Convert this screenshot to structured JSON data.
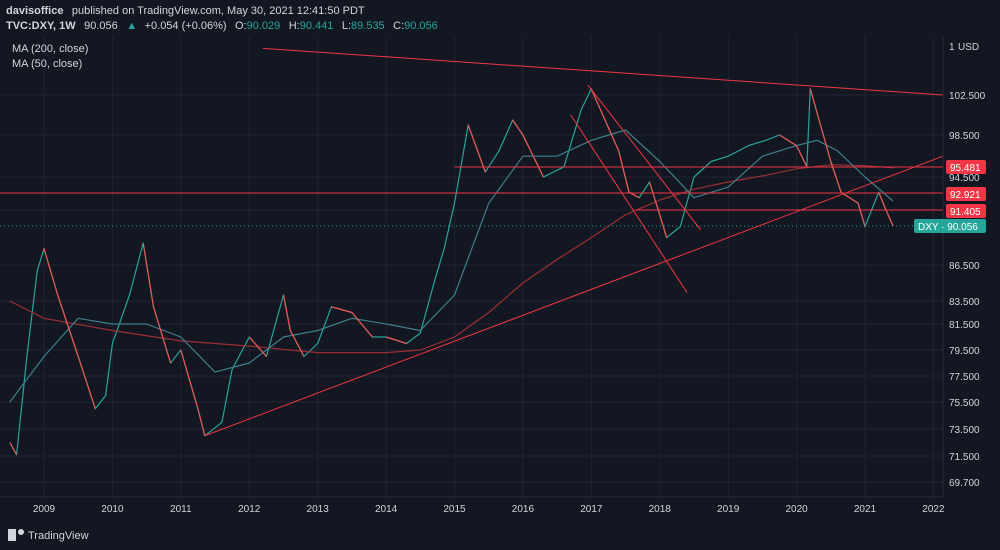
{
  "header": {
    "author": "davisoffice",
    "published": "published on TradingView.com, May 30, 2021 12:41:50 PDT",
    "symbol": "TVC:DXY, 1W",
    "last": "90.056",
    "change": "+0.054 (+0.06%)",
    "open_label": "O:",
    "open": "90.029",
    "high_label": "H:",
    "high": "90.441",
    "low_label": "L:",
    "low": "89.535",
    "close_label": "C:",
    "close": "90.056"
  },
  "legend": {
    "ma200": "MA (200, close)",
    "ma50": "MA (50, close)"
  },
  "axis": {
    "currency_label": "USD"
  },
  "price_tags": {
    "current": "DXY · 90.056",
    "level_95": "95.481",
    "level_92": "92.921",
    "level_91": "91.405"
  },
  "brand": "TradingView",
  "colors": {
    "background": "#131722",
    "grid": "#1f2433",
    "up": "#26a69a",
    "down": "#ef5350",
    "trendline": "#f23645",
    "ma200": "#9c2f33",
    "ma50": "#3f7f8c",
    "tag_red": "#f23645",
    "tag_current": "#26a69a"
  },
  "chart_data": {
    "type": "line",
    "title": "TVC:DXY, 1W",
    "series": [
      {
        "name": "DXY",
        "x": [
          2008.5,
          2008.6,
          2008.75,
          2008.9,
          2009.0,
          2009.2,
          2009.5,
          2009.75,
          2009.9,
          2010.0,
          2010.25,
          2010.45,
          2010.6,
          2010.85,
          2011.0,
          2011.25,
          2011.35,
          2011.6,
          2011.75,
          2012.0,
          2012.25,
          2012.5,
          2012.6,
          2012.8,
          2013.0,
          2013.2,
          2013.5,
          2013.8,
          2014.0,
          2014.3,
          2014.5,
          2014.7,
          2014.85,
          2015.0,
          2015.2,
          2015.45,
          2015.65,
          2015.85,
          2016.0,
          2016.3,
          2016.6,
          2016.85,
          2017.0,
          2017.2,
          2017.4,
          2017.55,
          2017.7,
          2017.85,
          2018.0,
          2018.1,
          2018.3,
          2018.5,
          2018.75,
          2019.0,
          2019.3,
          2019.55,
          2019.75,
          2020.0,
          2020.15,
          2020.2,
          2020.35,
          2020.5,
          2020.65,
          2020.9,
          2021.0,
          2021.2,
          2021.3,
          2021.41
        ],
        "values": [
          72.5,
          71.6,
          79.0,
          86.0,
          88.0,
          84.0,
          79.0,
          75.0,
          76.0,
          80.0,
          84.0,
          88.5,
          83.0,
          78.5,
          79.5,
          75.0,
          73.0,
          74.0,
          78.0,
          80.5,
          79.0,
          84.0,
          81.0,
          79.0,
          80.0,
          83.0,
          82.5,
          80.5,
          80.5,
          80.0,
          80.8,
          85.0,
          88.0,
          92.0,
          99.5,
          95.0,
          97.0,
          100.0,
          98.5,
          94.5,
          95.5,
          101.0,
          103.0,
          100.0,
          97.0,
          93.0,
          92.5,
          94.0,
          91.0,
          89.0,
          90.0,
          94.5,
          96.0,
          96.5,
          97.5,
          98.0,
          98.5,
          97.5,
          95.5,
          103.0,
          99.5,
          96.0,
          93.0,
          92.0,
          90.0,
          93.0,
          91.5,
          90.056
        ]
      },
      {
        "name": "MA (200, close)",
        "x": [
          2008.5,
          2009.0,
          2010.0,
          2011.0,
          2012.0,
          2013.0,
          2014.0,
          2014.5,
          2015.0,
          2015.5,
          2016.0,
          2016.5,
          2017.0,
          2017.5,
          2018.0,
          2018.5,
          2019.0,
          2019.5,
          2020.0,
          2020.5,
          2021.0,
          2021.41
        ],
        "values": [
          83.5,
          82.0,
          81.0,
          80.2,
          79.8,
          79.3,
          79.3,
          79.5,
          80.5,
          82.5,
          85.0,
          87.0,
          89.0,
          91.0,
          92.3,
          93.3,
          94.0,
          94.6,
          95.3,
          95.7,
          95.6,
          95.4
        ]
      },
      {
        "name": "MA (50, close)",
        "x": [
          2008.5,
          2009.0,
          2009.5,
          2010.0,
          2010.5,
          2011.0,
          2011.5,
          2012.0,
          2012.5,
          2013.0,
          2013.5,
          2014.0,
          2014.5,
          2015.0,
          2015.5,
          2016.0,
          2016.5,
          2017.0,
          2017.5,
          2018.0,
          2018.5,
          2019.0,
          2019.5,
          2020.0,
          2020.3,
          2020.6,
          2021.0,
          2021.41
        ],
        "values": [
          75.5,
          79.0,
          82.0,
          81.5,
          81.5,
          80.5,
          77.8,
          78.5,
          80.5,
          81.0,
          82.0,
          81.5,
          81.0,
          84.0,
          92.0,
          96.5,
          96.5,
          98.0,
          99.0,
          96.0,
          92.5,
          93.5,
          96.5,
          97.5,
          98.0,
          97.0,
          94.5,
          92.2
        ]
      }
    ],
    "y_ticks": [
      69.7,
      71.5,
      73.5,
      75.5,
      77.5,
      79.5,
      81.5,
      83.5,
      86.5,
      91.405,
      94.5,
      98.5,
      102.5
    ],
    "y_tick_labels": [
      "69.700",
      "71.500",
      "73.500",
      "75.500",
      "77.500",
      "79.500",
      "81.500",
      "83.500",
      "86.500",
      "91.405",
      "94.500",
      "98.500",
      "102.500"
    ],
    "x_ticks": [
      2009,
      2010,
      2011,
      2012,
      2013,
      2014,
      2015,
      2016,
      2017,
      2018,
      2019,
      2020,
      2021,
      2022
    ],
    "x_tick_labels": [
      "2009",
      "2010",
      "2011",
      "2012",
      "2013",
      "2014",
      "2015",
      "2016",
      "2017",
      "2018",
      "2019",
      "2020",
      "2021",
      "2022"
    ],
    "horizontal_levels": [
      95.481,
      92.921,
      91.405
    ],
    "current_price": 90.056,
    "grid": true,
    "legend": "top-left"
  }
}
